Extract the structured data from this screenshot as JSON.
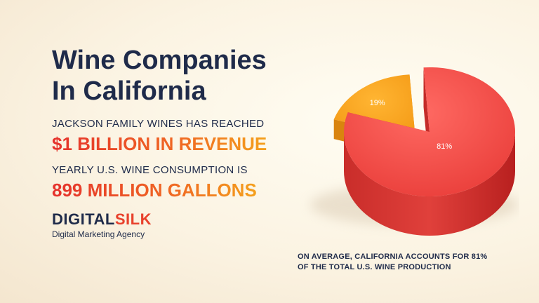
{
  "title": {
    "line1": "Wine Companies",
    "line2": "In California"
  },
  "stats": [
    {
      "label": "JACKSON FAMILY WINES HAS REACHED",
      "value": "$1 BILLION IN REVENUE"
    },
    {
      "label": "YEARLY U.S. WINE CONSUMPTION IS",
      "value": "899 MILLION GALLONS"
    }
  ],
  "brand": {
    "name_part1": "DIGITAL",
    "name_part2": "SILK",
    "tagline": "Digital Marketing Agency"
  },
  "caption": {
    "line1": "ON AVERAGE, CALIFORNIA ACCOUNTS FOR 81%",
    "line2": "OF THE TOTAL U.S. WINE PRODUCTION"
  },
  "colors": {
    "primary_slice": "#ef4a45",
    "secondary_slice": "#f7a21b",
    "navy": "#1f2b4a",
    "accent": "#e8412c"
  },
  "chart_data": {
    "type": "pie",
    "categories": [
      "",
      ""
    ],
    "values": [
      81,
      19
    ],
    "labels": [
      "81%",
      "19%"
    ],
    "colors": [
      "#ef4a45",
      "#f7a21b"
    ],
    "style": "3d",
    "legend": "none"
  }
}
